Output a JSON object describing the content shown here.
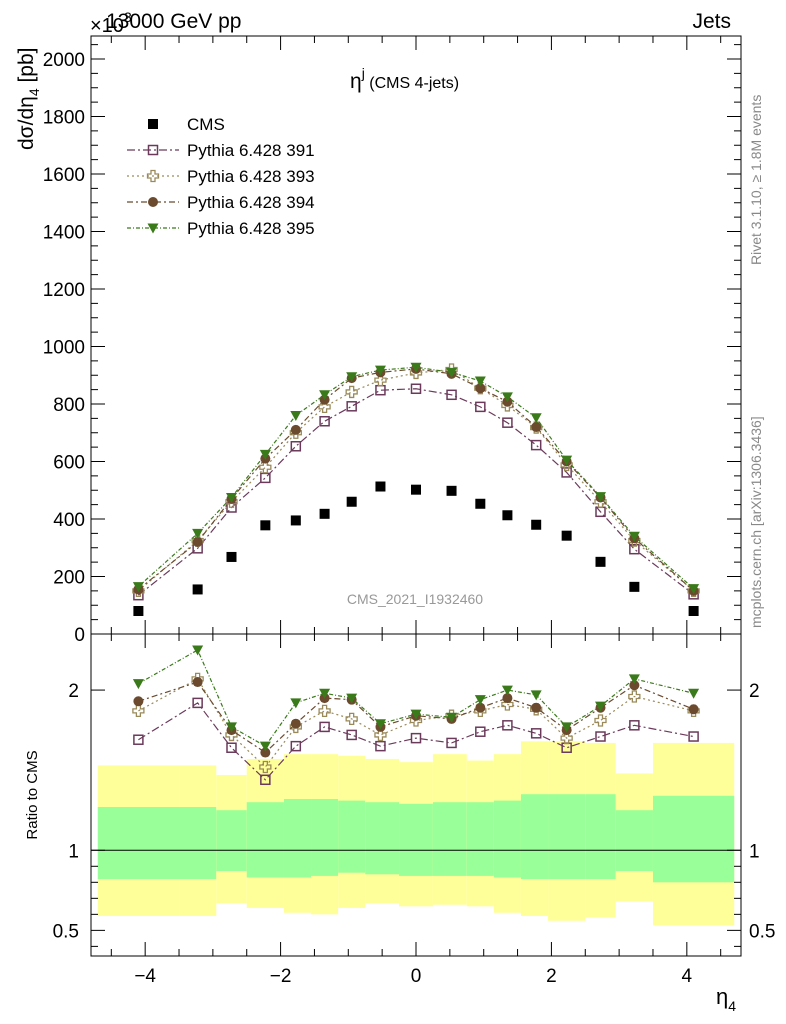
{
  "header": {
    "energy": "13000 GeV pp",
    "category": "Jets",
    "multiplier": "×10",
    "multiplier_exp": "3"
  },
  "side_text": {
    "rivet": "Rivet 3.1.10, ≥ 1.8M events",
    "mcplots": "mcplots.cern.ch [arXiv:1306.3436]"
  },
  "main_plot": {
    "title_main": "η",
    "title_sup": "j",
    "title_rest": " (CMS 4-jets)",
    "ylabel": "dσ/dη",
    "ylabel_sub": "4",
    "ylabel_unit": " [pb]",
    "analysis_id": "CMS_2021_I1932460"
  },
  "ratio_plot": {
    "ylabel": "Ratio to CMS"
  },
  "xaxis": {
    "label": "η",
    "label_sub": "4"
  },
  "legend": [
    {
      "label": "CMS",
      "marker": "filled-square",
      "color": "#000000"
    },
    {
      "label": "Pythia 6.428 391",
      "marker": "open-square",
      "color": "#6b3a5b"
    },
    {
      "label": "Pythia 6.428 393",
      "marker": "open-cross",
      "color": "#9a8a5a"
    },
    {
      "label": "Pythia 6.428 394",
      "marker": "filled-circle",
      "color": "#6b4a2e"
    },
    {
      "label": "Pythia 6.428 395",
      "marker": "filled-triangle-down",
      "color": "#3a7a1a"
    }
  ],
  "chart_data": [
    {
      "type": "scatter",
      "panel": "main",
      "xlim": [
        -4.8,
        4.8
      ],
      "ylim": [
        0,
        2080
      ],
      "y_scale_factor": 1000,
      "x_ticks": [
        -4,
        -2,
        0,
        2,
        4
      ],
      "y_ticks": [
        0,
        200,
        400,
        600,
        800,
        1000,
        1200,
        1400,
        1600,
        1800,
        2000
      ],
      "x": [
        -4.1,
        -3.225,
        -2.725,
        -2.225,
        -1.775,
        -1.35,
        -0.95,
        -0.525,
        0.0,
        0.525,
        0.95,
        1.35,
        1.775,
        2.225,
        2.725,
        3.225,
        4.1
      ],
      "series": [
        {
          "name": "CMS",
          "values": [
            80,
            155,
            268,
            378,
            395,
            418,
            460,
            513,
            502,
            498,
            453,
            413,
            380,
            342,
            251,
            164,
            80
          ]
        },
        {
          "name": "Pythia 6.428 391",
          "values": [
            135,
            298,
            440,
            543,
            653,
            740,
            792,
            848,
            853,
            832,
            790,
            735,
            657,
            562,
            425,
            295,
            138
          ]
        },
        {
          "name": "Pythia 6.428 393",
          "values": [
            150,
            325,
            460,
            580,
            700,
            790,
            842,
            883,
            908,
            920,
            855,
            795,
            718,
            588,
            460,
            325,
            150
          ]
        },
        {
          "name": "Pythia 6.428 394",
          "values": [
            155,
            320,
            470,
            610,
            710,
            815,
            890,
            910,
            922,
            905,
            855,
            808,
            720,
            600,
            475,
            333,
            150
          ]
        },
        {
          "name": "Pythia 6.428 395",
          "values": [
            165,
            350,
            475,
            625,
            760,
            832,
            895,
            918,
            928,
            910,
            880,
            825,
            752,
            605,
            478,
            340,
            158
          ]
        }
      ]
    },
    {
      "type": "scatter",
      "panel": "ratio",
      "ylabel": "Ratio to CMS",
      "xlim": [
        -4.8,
        4.8
      ],
      "ylim": [
        0.34,
        2.35
      ],
      "y_ticks": [
        0.5,
        1,
        2
      ],
      "x": [
        -4.1,
        -3.225,
        -2.725,
        -2.225,
        -1.775,
        -1.35,
        -0.95,
        -0.525,
        0.0,
        0.525,
        0.95,
        1.35,
        1.775,
        2.225,
        2.725,
        3.225,
        4.1
      ],
      "series": [
        {
          "name": "Pythia 6.428 391",
          "values": [
            1.69,
            1.92,
            1.64,
            1.44,
            1.65,
            1.77,
            1.72,
            1.65,
            1.7,
            1.67,
            1.74,
            1.78,
            1.73,
            1.64,
            1.71,
            1.78,
            1.71
          ]
        },
        {
          "name": "Pythia 6.428 393",
          "values": [
            1.87,
            2.07,
            1.72,
            1.52,
            1.77,
            1.87,
            1.82,
            1.72,
            1.81,
            1.84,
            1.87,
            1.91,
            1.88,
            1.7,
            1.81,
            1.96,
            1.87
          ]
        },
        {
          "name": "Pythia 6.428 394",
          "values": [
            1.93,
            2.05,
            1.75,
            1.61,
            1.79,
            1.95,
            1.94,
            1.77,
            1.84,
            1.82,
            1.89,
            1.95,
            1.89,
            1.75,
            1.89,
            2.03,
            1.88
          ]
        },
        {
          "name": "Pythia 6.428 395",
          "values": [
            2.04,
            2.25,
            1.77,
            1.65,
            1.92,
            1.98,
            1.95,
            1.79,
            1.85,
            1.83,
            1.94,
            2.0,
            1.97,
            1.77,
            1.9,
            2.07,
            1.98
          ]
        }
      ],
      "uncertainty_bands": {
        "bin_edges": [
          -4.7,
          -3.5,
          -2.95,
          -2.5,
          -1.95,
          -1.55,
          -1.15,
          -0.75,
          -0.25,
          0.25,
          0.75,
          1.15,
          1.55,
          1.95,
          2.5,
          2.95,
          3.5,
          4.7
        ],
        "stat_syst_lo": [
          0.59,
          0.59,
          0.67,
          0.64,
          0.61,
          0.6,
          0.64,
          0.67,
          0.65,
          0.66,
          0.65,
          0.61,
          0.59,
          0.56,
          0.58,
          0.68,
          0.53
        ],
        "stat_syst_hi": [
          1.53,
          1.53,
          1.47,
          1.57,
          1.6,
          1.6,
          1.59,
          1.57,
          1.55,
          1.6,
          1.56,
          1.6,
          1.68,
          1.68,
          1.67,
          1.48,
          1.67
        ],
        "stat_lo": [
          0.82,
          0.82,
          0.87,
          0.83,
          0.83,
          0.84,
          0.86,
          0.85,
          0.84,
          0.84,
          0.84,
          0.83,
          0.82,
          0.82,
          0.82,
          0.87,
          0.8
        ],
        "stat_hi": [
          1.27,
          1.27,
          1.25,
          1.3,
          1.32,
          1.32,
          1.31,
          1.3,
          1.29,
          1.3,
          1.3,
          1.31,
          1.35,
          1.35,
          1.35,
          1.25,
          1.34
        ],
        "inner_color": "#99ff99",
        "outer_color": "#ffff99"
      }
    }
  ]
}
